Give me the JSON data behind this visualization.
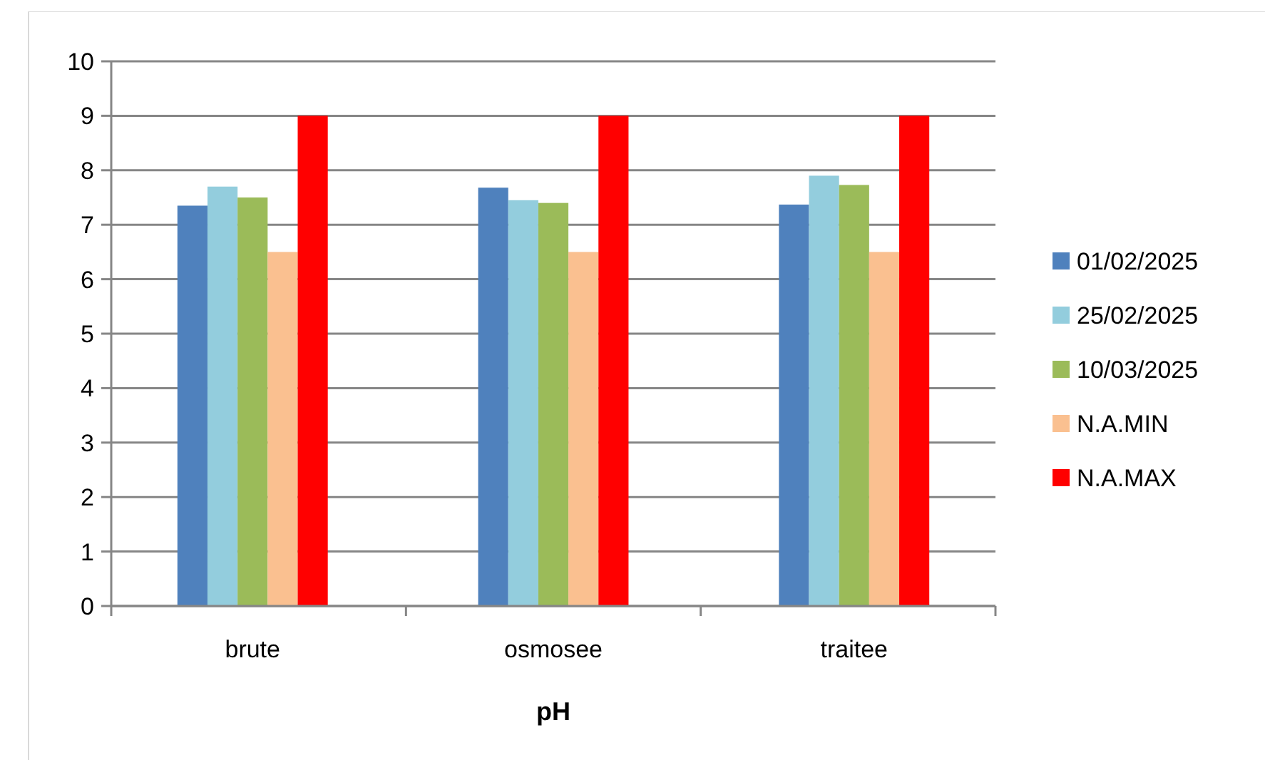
{
  "chart_data": {
    "type": "bar",
    "xlabel": "pH",
    "categories": [
      "brute",
      "osmosee",
      "traitee"
    ],
    "series": [
      {
        "name": "01/02/2025",
        "color": "#4f81bd",
        "values": [
          7.35,
          7.68,
          7.37
        ]
      },
      {
        "name": "25/02/2025",
        "color": "#93cddd",
        "values": [
          7.7,
          7.45,
          7.9
        ]
      },
      {
        "name": "10/03/2025",
        "color": "#9bbb59",
        "values": [
          7.5,
          7.4,
          7.73
        ]
      },
      {
        "name": "N.A.MIN",
        "color": "#fac090",
        "values": [
          6.5,
          6.5,
          6.5
        ]
      },
      {
        "name": "N.A.MAX",
        "color": "#ff0000",
        "values": [
          9,
          9,
          9
        ]
      }
    ],
    "ylim": [
      0,
      10
    ],
    "yticks": [
      0,
      1,
      2,
      3,
      4,
      5,
      6,
      7,
      8,
      9,
      10
    ],
    "grid": "y",
    "legend": "right"
  }
}
